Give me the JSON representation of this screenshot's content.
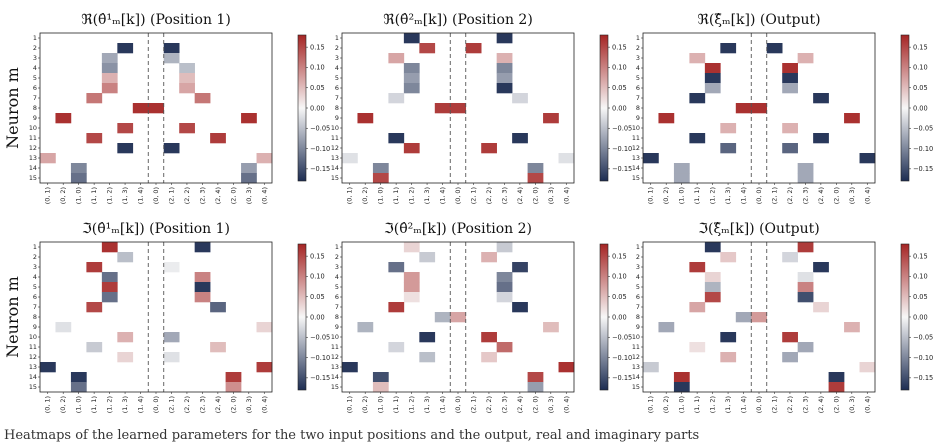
{
  "figure": {
    "y_axis_label": "Neuron m",
    "caption": "Heatmaps of the learned parameters for the two input positions and the output, real and imaginary parts"
  },
  "colormap": {
    "negative": "#1d2d52",
    "zero": "#f7f7f7",
    "positive": "#a52524"
  },
  "chart_data": [
    {
      "type": "heatmap",
      "title": "ℜ(θ̂¹ₘ[k]) (Position 1)",
      "xlabel": "",
      "ylabel": "Neuron m",
      "x": [
        "(0, 1)",
        "(0, 2)",
        "(1, 0)",
        "(1, 1)",
        "(1, 2)",
        "(1, 3)",
        "(1, 4)",
        "(0, 0)",
        "(2, 1)",
        "(2, 2)",
        "(2, 3)",
        "(2, 4)",
        "(2, 0)",
        "(0, 3)",
        "(0, 4)"
      ],
      "y": [
        "1",
        "2",
        "3",
        "4",
        "5",
        "6",
        "7",
        "8",
        "9",
        "10",
        "11",
        "12",
        "13",
        "14",
        "15"
      ],
      "colorbar_ticks": [
        "0.15",
        "0.10",
        "0.05",
        "0.00",
        "−0.05",
        "−0.10",
        "−0.15"
      ],
      "clim": [
        -0.18,
        0.18
      ],
      "cells": [
        [
          1,
          5,
          -0.17
        ],
        [
          2,
          4,
          -0.07
        ],
        [
          3,
          4,
          -0.09
        ],
        [
          4,
          4,
          0.06
        ],
        [
          5,
          4,
          0.1
        ],
        [
          6,
          3,
          0.11
        ],
        [
          7,
          6,
          0.17
        ],
        [
          8,
          1,
          0.17
        ],
        [
          9,
          5,
          0.15
        ],
        [
          10,
          3,
          0.15
        ],
        [
          11,
          5,
          -0.17
        ],
        [
          12,
          0,
          0.07
        ],
        [
          13,
          2,
          -0.1
        ],
        [
          14,
          2,
          -0.12
        ]
      ],
      "mirror_cells": [
        [
          0,
          10,
          0.0
        ],
        [
          1,
          8,
          -0.17
        ],
        [
          2,
          8,
          -0.06
        ],
        [
          3,
          9,
          -0.05
        ],
        [
          4,
          9,
          0.05
        ],
        [
          5,
          9,
          0.07
        ],
        [
          6,
          10,
          0.11
        ],
        [
          7,
          7,
          0.17
        ],
        [
          8,
          13,
          0.17
        ],
        [
          9,
          9,
          0.15
        ],
        [
          10,
          11,
          0.16
        ],
        [
          11,
          8,
          -0.17
        ],
        [
          12,
          14,
          0.06
        ],
        [
          13,
          13,
          -0.08
        ],
        [
          14,
          13,
          -0.12
        ]
      ]
    },
    {
      "type": "heatmap",
      "title": "ℜ(θ̂²ₘ[k]) (Position 2)",
      "xlabel": "",
      "ylabel": "",
      "x": [
        "(0, 1)",
        "(0, 2)",
        "(1, 0)",
        "(1, 1)",
        "(1, 2)",
        "(1, 3)",
        "(1, 4)",
        "(0, 0)",
        "(2, 1)",
        "(2, 2)",
        "(2, 3)",
        "(2, 4)",
        "(2, 0)",
        "(0, 3)",
        "(0, 4)"
      ],
      "y": [
        "1",
        "2",
        "3",
        "4",
        "5",
        "6",
        "7",
        "8",
        "9",
        "10",
        "11",
        "12",
        "13",
        "14",
        "15"
      ],
      "colorbar_ticks": [
        "0.15",
        "0.10",
        "0.05",
        "0.00",
        "−0.05",
        "−0.10",
        "−0.15"
      ],
      "clim": [
        -0.18,
        0.18
      ],
      "cells": [
        [
          0,
          4,
          -0.17
        ],
        [
          1,
          5,
          0.15
        ],
        [
          2,
          3,
          0.07
        ],
        [
          3,
          4,
          -0.1
        ],
        [
          4,
          4,
          -0.08
        ],
        [
          5,
          4,
          -0.1
        ],
        [
          6,
          3,
          -0.03
        ],
        [
          7,
          6,
          0.16
        ],
        [
          8,
          1,
          0.17
        ],
        [
          9,
          5,
          0.0
        ],
        [
          10,
          3,
          -0.17
        ],
        [
          11,
          4,
          0.16
        ],
        [
          12,
          0,
          -0.02
        ],
        [
          13,
          2,
          -0.1
        ],
        [
          14,
          2,
          0.15
        ]
      ],
      "mirror_cells": [
        [
          0,
          10,
          -0.17
        ],
        [
          1,
          8,
          0.16
        ],
        [
          2,
          10,
          0.06
        ],
        [
          3,
          10,
          -0.1
        ],
        [
          4,
          10,
          -0.08
        ],
        [
          5,
          10,
          -0.17
        ],
        [
          6,
          11,
          -0.03
        ],
        [
          7,
          7,
          0.16
        ],
        [
          8,
          13,
          0.16
        ],
        [
          9,
          9,
          0.0
        ],
        [
          10,
          11,
          -0.17
        ],
        [
          11,
          9,
          0.16
        ],
        [
          12,
          14,
          -0.02
        ],
        [
          13,
          12,
          -0.1
        ],
        [
          14,
          12,
          0.15
        ]
      ]
    },
    {
      "type": "heatmap",
      "title": "ℜ(ξ̂ₘ[k]) (Output)",
      "xlabel": "",
      "ylabel": "",
      "x": [
        "(0, 1)",
        "(0, 2)",
        "(1, 0)",
        "(1, 1)",
        "(1, 2)",
        "(1, 3)",
        "(1, 4)",
        "(0, 0)",
        "(2, 1)",
        "(2, 2)",
        "(2, 3)",
        "(2, 4)",
        "(2, 0)",
        "(0, 3)",
        "(0, 4)"
      ],
      "y": [
        "1",
        "2",
        "3",
        "4",
        "5",
        "6",
        "7",
        "8",
        "9",
        "10",
        "11",
        "12",
        "13",
        "14",
        "15"
      ],
      "colorbar_ticks": [
        "0.15",
        "0.10",
        "0.05",
        "0.00",
        "−0.05",
        "−0.10",
        "−0.15"
      ],
      "clim": [
        -0.18,
        0.18
      ],
      "cells": [
        [
          0,
          5,
          0.0
        ],
        [
          1,
          5,
          -0.17
        ],
        [
          2,
          3,
          0.06
        ],
        [
          3,
          4,
          0.17
        ],
        [
          4,
          4,
          -0.17
        ],
        [
          5,
          4,
          -0.07
        ],
        [
          6,
          3,
          -0.17
        ],
        [
          7,
          6,
          0.17
        ],
        [
          8,
          1,
          0.17
        ],
        [
          9,
          5,
          0.06
        ],
        [
          10,
          3,
          -0.17
        ],
        [
          11,
          5,
          -0.13
        ],
        [
          12,
          0,
          -0.17
        ],
        [
          14,
          2,
          -0.07
        ],
        [
          13,
          2,
          -0.07
        ]
      ],
      "mirror_cells": [
        [
          0,
          10,
          0.0
        ],
        [
          1,
          8,
          -0.17
        ],
        [
          2,
          10,
          0.06
        ],
        [
          3,
          9,
          0.17
        ],
        [
          4,
          9,
          -0.17
        ],
        [
          5,
          9,
          -0.07
        ],
        [
          6,
          11,
          -0.17
        ],
        [
          7,
          7,
          0.17
        ],
        [
          8,
          13,
          0.17
        ],
        [
          9,
          9,
          0.06
        ],
        [
          10,
          11,
          -0.17
        ],
        [
          11,
          9,
          -0.13
        ],
        [
          12,
          14,
          -0.17
        ],
        [
          13,
          10,
          -0.07
        ],
        [
          14,
          10,
          -0.07
        ]
      ]
    },
    {
      "type": "heatmap",
      "title": "ℑ(θ̂¹ₘ[k]) (Position 1)",
      "xlabel": "",
      "ylabel": "Neuron m",
      "x": [
        "(0, 1)",
        "(0, 2)",
        "(1, 0)",
        "(1, 1)",
        "(1, 2)",
        "(1, 3)",
        "(1, 4)",
        "(0, 0)",
        "(2, 1)",
        "(2, 2)",
        "(2, 3)",
        "(2, 4)",
        "(2, 0)",
        "(0, 3)",
        "(0, 4)"
      ],
      "y": [
        "1",
        "2",
        "3",
        "4",
        "5",
        "6",
        "7",
        "8",
        "9",
        "10",
        "11",
        "12",
        "13",
        "14",
        "15"
      ],
      "colorbar_ticks": [
        "0.15",
        "0.10",
        "0.05",
        "0.00",
        "−0.05",
        "−0.10",
        "−0.15"
      ],
      "clim": [
        -0.18,
        0.18
      ],
      "cells": [
        [
          0,
          4,
          0.17
        ],
        [
          1,
          5,
          -0.05
        ],
        [
          2,
          3,
          0.16
        ],
        [
          3,
          4,
          -0.12
        ],
        [
          4,
          4,
          0.16
        ],
        [
          5,
          4,
          -0.12
        ],
        [
          6,
          3,
          0.15
        ],
        [
          8,
          1,
          -0.02
        ],
        [
          9,
          5,
          0.06
        ],
        [
          10,
          3,
          -0.04
        ],
        [
          11,
          5,
          0.03
        ],
        [
          12,
          0,
          -0.17
        ],
        [
          13,
          2,
          -0.17
        ],
        [
          14,
          2,
          -0.12
        ]
      ],
      "mirror_cells": [
        [
          0,
          10,
          -0.17
        ],
        [
          2,
          8,
          -0.01
        ],
        [
          3,
          10,
          0.1
        ],
        [
          4,
          10,
          -0.17
        ],
        [
          5,
          10,
          0.1
        ],
        [
          6,
          11,
          -0.13
        ],
        [
          8,
          14,
          0.03
        ],
        [
          9,
          8,
          -0.07
        ],
        [
          10,
          11,
          0.05
        ],
        [
          11,
          8,
          -0.02
        ],
        [
          12,
          14,
          0.16
        ],
        [
          13,
          12,
          0.16
        ],
        [
          14,
          12,
          0.09
        ]
      ]
    },
    {
      "type": "heatmap",
      "title": "ℑ(θ̂²ₘ[k]) (Position 2)",
      "xlabel": "",
      "ylabel": "",
      "x": [
        "(0, 1)",
        "(0, 2)",
        "(1, 0)",
        "(1, 1)",
        "(1, 2)",
        "(1, 3)",
        "(1, 4)",
        "(0, 0)",
        "(2, 1)",
        "(2, 2)",
        "(2, 3)",
        "(2, 4)",
        "(2, 0)",
        "(0, 3)",
        "(0, 4)"
      ],
      "y": [
        "1",
        "2",
        "3",
        "4",
        "5",
        "6",
        "7",
        "8",
        "9",
        "10",
        "11",
        "12",
        "13",
        "14",
        "15"
      ],
      "colorbar_ticks": [
        "0.15",
        "0.10",
        "0.05",
        "0.00",
        "−0.05",
        "−0.10",
        "−0.15"
      ],
      "clim": [
        -0.18,
        0.18
      ],
      "cells": [
        [
          0,
          4,
          0.03
        ],
        [
          1,
          5,
          -0.04
        ],
        [
          2,
          3,
          -0.12
        ],
        [
          3,
          4,
          0.08
        ],
        [
          4,
          4,
          0.08
        ],
        [
          5,
          4,
          0.02
        ],
        [
          6,
          3,
          0.16
        ],
        [
          7,
          6,
          -0.06
        ],
        [
          8,
          1,
          -0.06
        ],
        [
          9,
          5,
          -0.17
        ],
        [
          10,
          3,
          -0.03
        ],
        [
          11,
          5,
          -0.05
        ],
        [
          12,
          0,
          -0.17
        ],
        [
          13,
          2,
          -0.15
        ],
        [
          14,
          2,
          0.05
        ]
      ],
      "mirror_cells": [
        [
          0,
          10,
          -0.04
        ],
        [
          1,
          9,
          0.06
        ],
        [
          2,
          11,
          -0.16
        ],
        [
          3,
          10,
          -0.1
        ],
        [
          4,
          10,
          -0.12
        ],
        [
          5,
          10,
          -0.03
        ],
        [
          6,
          11,
          -0.17
        ],
        [
          7,
          7,
          0.07
        ],
        [
          8,
          13,
          0.05
        ],
        [
          9,
          9,
          0.16
        ],
        [
          10,
          10,
          0.12
        ],
        [
          11,
          9,
          0.04
        ],
        [
          12,
          14,
          0.17
        ],
        [
          13,
          12,
          0.15
        ],
        [
          14,
          12,
          -0.08
        ]
      ]
    },
    {
      "type": "heatmap",
      "title": "ℑ(ξ̂ₘ[k]) (Output)",
      "xlabel": "",
      "ylabel": "",
      "x": [
        "(0, 1)",
        "(0, 2)",
        "(1, 0)",
        "(1, 1)",
        "(1, 2)",
        "(1, 3)",
        "(1, 4)",
        "(0, 0)",
        "(2, 1)",
        "(2, 2)",
        "(2, 3)",
        "(2, 4)",
        "(2, 0)",
        "(0, 3)",
        "(0, 4)"
      ],
      "y": [
        "1",
        "2",
        "3",
        "4",
        "5",
        "6",
        "7",
        "8",
        "9",
        "10",
        "11",
        "12",
        "13",
        "14",
        "15"
      ],
      "colorbar_ticks": [
        "0.15",
        "0.10",
        "0.05",
        "0.00",
        "−0.05",
        "−0.10",
        "−0.15"
      ],
      "clim": [
        -0.18,
        0.18
      ],
      "cells": [
        [
          0,
          4,
          -0.17
        ],
        [
          1,
          5,
          0.04
        ],
        [
          2,
          3,
          0.16
        ],
        [
          3,
          4,
          0.03
        ],
        [
          4,
          4,
          -0.06
        ],
        [
          5,
          4,
          0.15
        ],
        [
          6,
          3,
          0.07
        ],
        [
          7,
          6,
          -0.07
        ],
        [
          8,
          1,
          -0.07
        ],
        [
          9,
          5,
          -0.17
        ],
        [
          10,
          3,
          0.02
        ],
        [
          11,
          5,
          0.06
        ],
        [
          12,
          0,
          -0.04
        ],
        [
          13,
          2,
          0.17
        ],
        [
          14,
          2,
          -0.17
        ]
      ],
      "mirror_cells": [
        [
          0,
          10,
          0.16
        ],
        [
          1,
          9,
          -0.03
        ],
        [
          2,
          11,
          -0.17
        ],
        [
          3,
          10,
          -0.02
        ],
        [
          4,
          10,
          0.1
        ],
        [
          5,
          10,
          -0.15
        ],
        [
          6,
          11,
          0.03
        ],
        [
          7,
          7,
          0.08
        ],
        [
          8,
          13,
          0.06
        ],
        [
          9,
          9,
          0.16
        ],
        [
          10,
          10,
          -0.07
        ],
        [
          11,
          9,
          -0.07
        ],
        [
          12,
          14,
          0.03
        ],
        [
          13,
          12,
          -0.17
        ],
        [
          14,
          12,
          0.16
        ]
      ]
    }
  ]
}
